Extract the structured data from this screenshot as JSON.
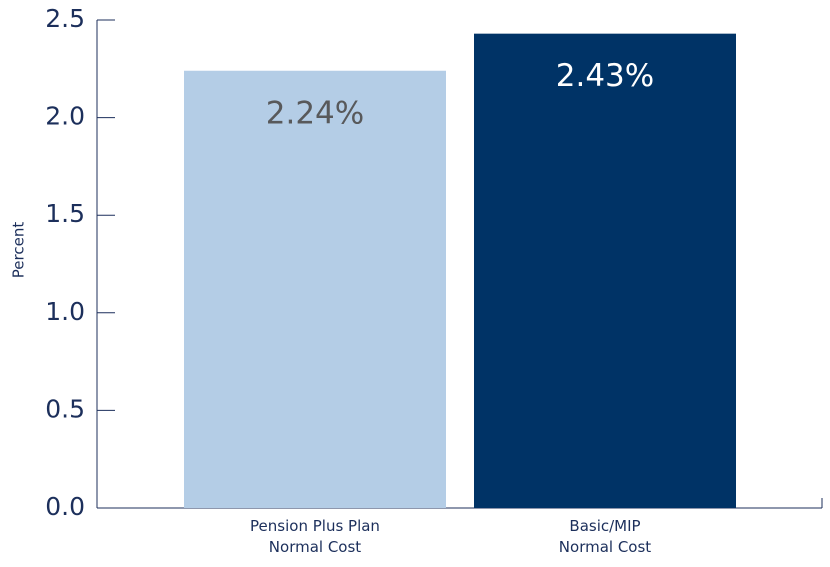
{
  "chart_data": {
    "type": "bar",
    "ylabel": "Percent",
    "categories": [
      "Pension Plus Plan\nNormal Cost",
      "Basic/MIP\nNormal Cost"
    ],
    "values": [
      2.24,
      2.43
    ],
    "value_labels": [
      "2.24%",
      "2.43%"
    ],
    "colors": [
      "#b4cde6",
      "#003366"
    ],
    "label_colors": [
      "#58595b",
      "#ffffff"
    ],
    "ylim": [
      0,
      2.5
    ],
    "yticks": [
      {
        "value": 0,
        "label": "0.0"
      },
      0.5,
      {
        "value": 1,
        "label": "1.0"
      },
      1.5,
      {
        "value": 2,
        "label": "2.0"
      },
      2.5
    ],
    "grid": false
  }
}
